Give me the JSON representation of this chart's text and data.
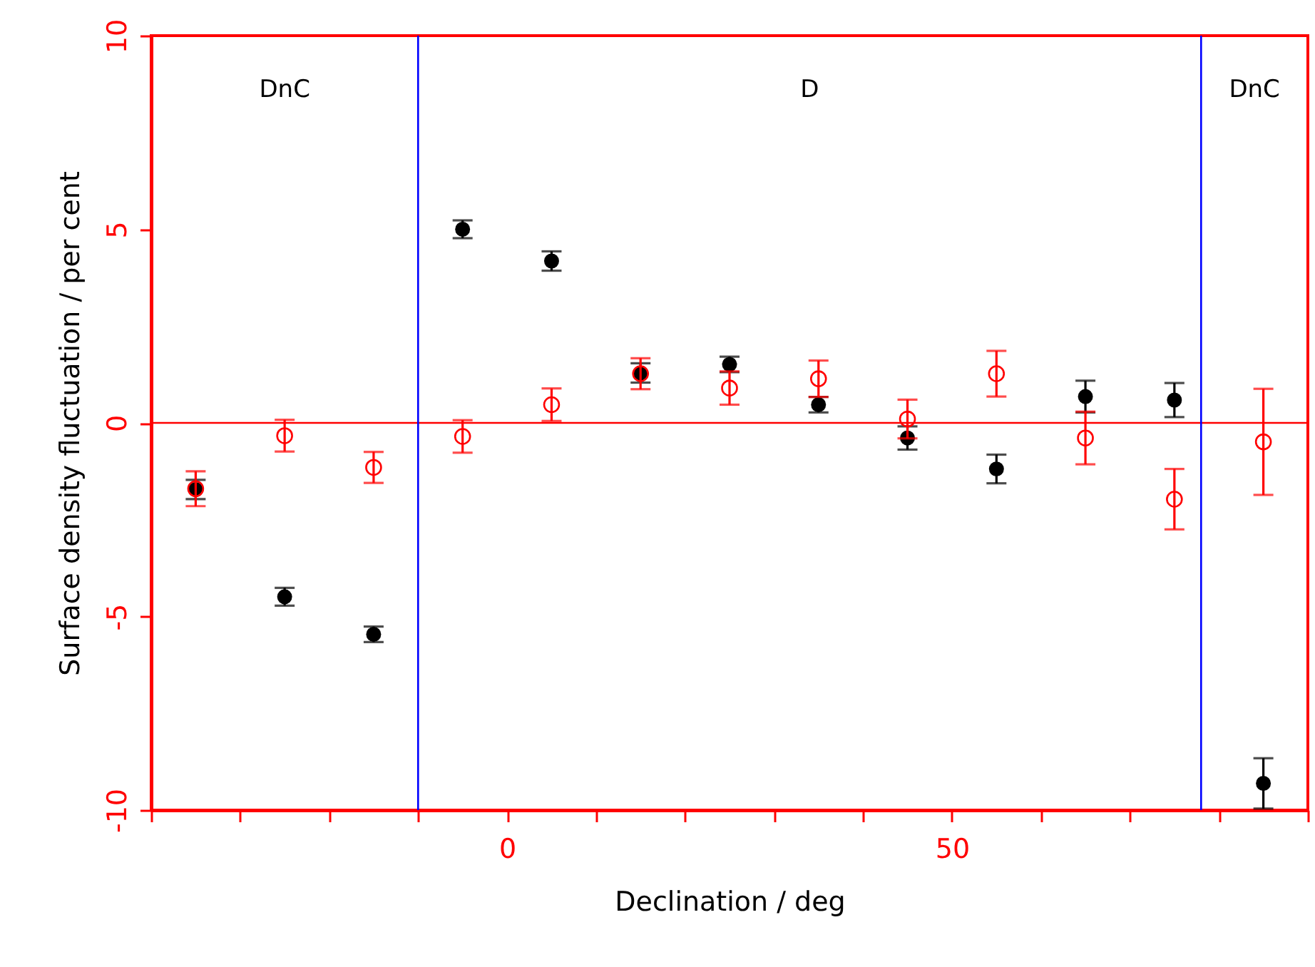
{
  "chart_data": {
    "type": "scatter",
    "xlabel": "Declination / deg",
    "ylabel": "Surface density fluctuation / per cent",
    "x": [
      -35,
      -25,
      -15,
      -5,
      5,
      15,
      25,
      35,
      45,
      55,
      65,
      75,
      85
    ],
    "series": [
      {
        "color": "#000000",
        "marker": "circle",
        "values": [
          -1.72,
          -4.49,
          -5.46,
          5.0,
          4.18,
          1.29,
          1.51,
          0.47,
          -0.39,
          -1.19,
          0.68,
          0.59,
          -9.31
        ],
        "errors": [
          0.25,
          0.23,
          0.2,
          0.23,
          0.25,
          0.25,
          0.2,
          0.2,
          0.3,
          0.37,
          0.41,
          0.44,
          0.65
        ]
      },
      {
        "color": "#ff0000",
        "marker": "circle",
        "values": [
          -1.7,
          -0.33,
          -1.15,
          -0.35,
          0.47,
          1.27,
          0.9,
          1.14,
          0.1,
          1.27,
          -0.39,
          -1.97,
          -0.49
        ],
        "errors": [
          0.45,
          0.41,
          0.4,
          0.42,
          0.42,
          0.4,
          0.43,
          0.47,
          0.5,
          0.59,
          0.68,
          0.78,
          1.37
        ]
      }
    ],
    "xlim": [
      -40,
      90
    ],
    "ylim": [
      -10,
      10
    ],
    "xticks": [
      {
        "value": -40,
        "label": null
      },
      {
        "value": -30,
        "label": null
      },
      {
        "value": -20,
        "label": null
      },
      {
        "value": -10,
        "label": null
      },
      0,
      {
        "value": 10,
        "label": null
      },
      {
        "value": 20,
        "label": null
      },
      {
        "value": 30,
        "label": null
      },
      {
        "value": 40,
        "label": null
      },
      50,
      {
        "value": 60,
        "label": null
      },
      {
        "value": 70,
        "label": null
      },
      {
        "value": 80,
        "label": null
      },
      {
        "value": 90,
        "label": null
      }
    ],
    "yticks": [
      -10,
      -5,
      0,
      5,
      10
    ],
    "ref_lines": [
      {
        "axis": "y",
        "value": 0,
        "color": "#ff0000"
      },
      {
        "axis": "x",
        "value": -10,
        "color": "#0000ff"
      },
      {
        "axis": "x",
        "value": 78,
        "color": "#0000ff"
      }
    ],
    "annotations": [
      "DnC",
      "D",
      "DnC"
    ],
    "grid": false
  }
}
